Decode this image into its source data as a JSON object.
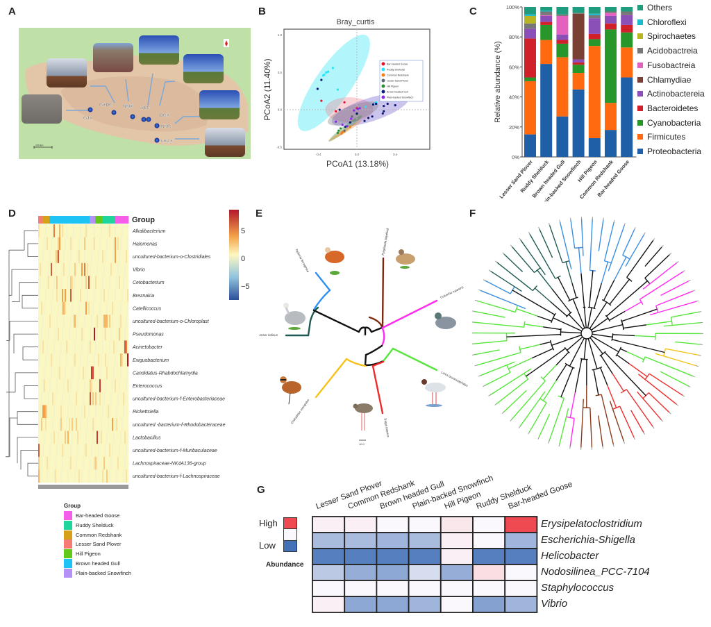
{
  "panels": {
    "a": "A",
    "b": "B",
    "c": "C",
    "d": "D",
    "e": "E",
    "f": "F",
    "g": "G"
  },
  "map": {
    "sites": [
      "GJX",
      "GXDC",
      "NMX",
      "SLC",
      "BGX",
      "NMC",
      "LKZX"
    ],
    "scale_label": "200 km",
    "marker_color": "#1f4fb0"
  },
  "chart_data": [
    {
      "id": "pcoa",
      "type": "scatter",
      "title": "Bray_curtis",
      "xlabel": "PCoA1 (13.18%)",
      "ylabel": "PCoA2 (11.40%)",
      "xlim": [
        -0.76,
        0.76
      ],
      "ylim": [
        -0.53,
        1.08
      ],
      "xticks": [
        "-0.4",
        "0.0",
        "0.4"
      ],
      "yticks": [
        "-0.5",
        "0.0",
        "0.5",
        "1.0"
      ],
      "legend": "top-right",
      "series": [
        {
          "name": "Bar-headed Goose",
          "color": "#e8132a",
          "points": [
            [
              -0.37,
              0.12
            ],
            [
              -0.13,
              0.1
            ],
            [
              -0.22,
              -0.02
            ],
            [
              0.0,
              0.02
            ]
          ]
        },
        {
          "name": "Ruddy Shelduck",
          "color": "#22e5f5",
          "points": [
            [
              -0.34,
              0.47
            ],
            [
              -0.32,
              0.5
            ],
            [
              -0.3,
              0.51
            ],
            [
              -0.25,
              0.56
            ],
            [
              -0.2,
              0.27
            ],
            [
              -0.35,
              0.46
            ],
            [
              0.2,
              0.1
            ],
            [
              0.09,
              0.04
            ]
          ]
        },
        {
          "name": "Common Redshank",
          "color": "#f57b12",
          "points": [
            [
              -0.07,
              -0.23
            ],
            [
              -0.15,
              -0.3
            ],
            [
              -0.13,
              -0.29
            ],
            [
              -0.16,
              -0.32
            ]
          ]
        },
        {
          "name": "Lesser Sand Plover",
          "color": "#5a6a78",
          "points": [
            [
              -0.05,
              -0.09
            ],
            [
              -0.13,
              -0.28
            ]
          ]
        },
        {
          "name": "Hill Pigeon",
          "color": "#2e8a2e",
          "points": [
            [
              -0.17,
              -0.25
            ],
            [
              -0.19,
              -0.28
            ],
            [
              0.0,
              -0.06
            ],
            [
              -0.2,
              -0.31
            ]
          ]
        },
        {
          "name": "Brown headed Gull",
          "color": "#0b1a78",
          "points": [
            [
              -0.41,
              0.28
            ],
            [
              -0.37,
              0.4
            ],
            [
              -0.18,
              0.0
            ],
            [
              0.17,
              0.07
            ],
            [
              0.2,
              0.08
            ],
            [
              0.28,
              0.05
            ],
            [
              0.32,
              0.08
            ],
            [
              0.35,
              0.13
            ],
            [
              0.36,
              0.17
            ],
            [
              0.45,
              0.18
            ],
            [
              0.47,
              0.19
            ],
            [
              0.45,
              0.15
            ],
            [
              0.4,
              0.06
            ],
            [
              0.27,
              -0.05
            ],
            [
              0.12,
              -0.11
            ],
            [
              0.16,
              -0.09
            ],
            [
              0.08,
              -0.15
            ],
            [
              -0.07,
              -0.17
            ],
            [
              -0.12,
              -0.23
            ],
            [
              0.0,
              -0.05
            ],
            [
              0.28,
              -0.02
            ]
          ]
        },
        {
          "name": "Plain-backed Snowfinch",
          "color": "#8a2be2",
          "points": [
            [
              -0.22,
              -0.16
            ],
            [
              -0.06,
              -0.12
            ],
            [
              -0.03,
              -0.01
            ],
            [
              0.01,
              0.01
            ],
            [
              0.03,
              0.02
            ],
            [
              -0.15,
              -0.2
            ],
            [
              -0.1,
              -0.22
            ]
          ]
        }
      ]
    },
    {
      "id": "abundance",
      "type": "bar",
      "stacked": true,
      "ylabel": "Relative abundance (%)",
      "ylim": [
        0,
        100
      ],
      "yticks": [
        "0%",
        "20%",
        "40%",
        "60%",
        "80%",
        "100%"
      ],
      "legend": "right",
      "categories": [
        "Lesser Sand Plover",
        "Ruddy Shelduck",
        "Brown headed Gull",
        "Plain-backed Snowfinch",
        "Hill Pigeon",
        "Common Redshank",
        "Bar-headed Goose"
      ],
      "series": [
        {
          "name": "Proteobacteria",
          "color": "#1f5fa8",
          "values": [
            15,
            62,
            27,
            45,
            12.5,
            18,
            53
          ]
        },
        {
          "name": "Firmicutes",
          "color": "#ff6a10",
          "values": [
            35.5,
            16,
            39.5,
            11,
            61.5,
            18,
            20
          ]
        },
        {
          "name": "Cyanobacteria",
          "color": "#27962b",
          "values": [
            2.5,
            10,
            9,
            5.5,
            4.5,
            49,
            10
          ]
        },
        {
          "name": "Bacteroidetes",
          "color": "#d0202a",
          "values": [
            26,
            2,
            2.5,
            1.5,
            3.5,
            4,
            5
          ]
        },
        {
          "name": "Actinobactereia",
          "color": "#8b4fb8",
          "values": [
            6.5,
            4,
            3.5,
            2,
            10.5,
            5,
            6.5
          ]
        },
        {
          "name": "Chlamydiae",
          "color": "#7b4034",
          "values": [
            0,
            0,
            0,
            30.5,
            0,
            0,
            0
          ]
        },
        {
          "name": "Fusobactreia",
          "color": "#e461c0",
          "values": [
            0,
            0.5,
            12.5,
            0,
            0,
            2,
            0
          ]
        },
        {
          "name": "Acidobactreia",
          "color": "#777777",
          "values": [
            3.5,
            2.5,
            1,
            0.5,
            2,
            1,
            2.5
          ]
        },
        {
          "name": "Spirochaetes",
          "color": "#b8b522",
          "values": [
            5,
            0,
            0,
            0,
            0,
            0,
            0
          ]
        },
        {
          "name": "Chloroflexi",
          "color": "#1cbad0",
          "values": [
            1,
            0.5,
            0,
            0,
            1,
            0,
            0
          ]
        },
        {
          "name": "Others",
          "color": "#1f9c7e",
          "values": [
            5,
            2.5,
            5,
            4,
            4.5,
            3,
            3
          ]
        }
      ]
    },
    {
      "id": "genus-heatmap",
      "type": "heatmap",
      "legend_title": "Group",
      "scale_ticks": [
        "5",
        "0",
        "−5"
      ],
      "rows": [
        "Alkalibacterium",
        "Halomonas",
        "uncultured-bacterium-o-Clostridiales",
        "Vibrio",
        "Cetobacterium",
        "Breznakia",
        "Catellicoccus",
        "uncultured-bacterium-o-Chloroplast",
        "Pseudomonas",
        "Acinetobacter",
        "Exiguobacterium",
        "Candidatus-Rhabdochlamydia",
        "Enterococcus",
        "uncultured-bacterium-f-Enterobacteriaceae",
        "Rickettsiella",
        "uncultured -bacterium-f-Rhodobacteraceae",
        "Lactobacillus",
        "uncultured-bacterium-f-Muribaculaceae",
        "Lachnospiraceae-NK4A136-group",
        "uncultured-bacterium-f-Lachnospiraceae"
      ],
      "groups": [
        {
          "name": "Bar-headed Goose",
          "color": "#f55ee8"
        },
        {
          "name": "Ruddy Shelduck",
          "color": "#1ed69c"
        },
        {
          "name": "Common Redshank",
          "color": "#d7a019"
        },
        {
          "name": "Lesser Sand Plover",
          "color": "#f57b74"
        },
        {
          "name": "Hill Pigeon",
          "color": "#62c81c"
        },
        {
          "name": "Brown headed Gull",
          "color": "#1ec3f5"
        },
        {
          "name": "Plain-backed Snowfinch",
          "color": "#b491f5"
        }
      ],
      "column_groups": [
        {
          "group": "Lesser Sand Plover",
          "n": 3
        },
        {
          "group": "Common Redshank",
          "n": 5
        },
        {
          "group": "Brown headed Gull",
          "n": 29
        },
        {
          "group": "Plain-backed Snowfinch",
          "n": 4
        },
        {
          "group": "Hill Pigeon",
          "n": 5
        },
        {
          "group": "Ruddy Shelduck",
          "n": 9
        },
        {
          "group": "Bar-headed Goose",
          "n": 10
        }
      ],
      "hotspots": [
        [
          0,
          11,
          5
        ],
        [
          0,
          15,
          3
        ],
        [
          1,
          15,
          4
        ],
        [
          1,
          55,
          4
        ],
        [
          1,
          14,
          2
        ],
        [
          1,
          33,
          2
        ],
        [
          2,
          14,
          6
        ],
        [
          2,
          55,
          4
        ],
        [
          2,
          13,
          2
        ],
        [
          3,
          9,
          6
        ],
        [
          3,
          31,
          4
        ],
        [
          3,
          33,
          5
        ],
        [
          3,
          26,
          2
        ],
        [
          4,
          36,
          6
        ],
        [
          4,
          13,
          2
        ],
        [
          4,
          23,
          2
        ],
        [
          4,
          34,
          2
        ],
        [
          5,
          17,
          4
        ],
        [
          5,
          19,
          4
        ],
        [
          5,
          23,
          6
        ],
        [
          6,
          34,
          4
        ],
        [
          6,
          18,
          3
        ],
        [
          6,
          17,
          2
        ],
        [
          7,
          26,
          3
        ],
        [
          7,
          47,
          3
        ],
        [
          7,
          48,
          3
        ],
        [
          7,
          49,
          3
        ],
        [
          7,
          51,
          2
        ],
        [
          8,
          40,
          8
        ],
        [
          8,
          58,
          2
        ],
        [
          9,
          62,
          6
        ],
        [
          9,
          63,
          5
        ],
        [
          10,
          64,
          8
        ],
        [
          10,
          59,
          3
        ],
        [
          10,
          48,
          1
        ],
        [
          11,
          38,
          7
        ],
        [
          11,
          39,
          6
        ],
        [
          12,
          44,
          7
        ],
        [
          12,
          37,
          2
        ],
        [
          13,
          37,
          6
        ],
        [
          13,
          39,
          2
        ],
        [
          13,
          41,
          2
        ],
        [
          14,
          3,
          4
        ],
        [
          14,
          4,
          4
        ],
        [
          14,
          5,
          3
        ],
        [
          15,
          53,
          4
        ],
        [
          15,
          24,
          2
        ],
        [
          15,
          27,
          2
        ],
        [
          15,
          2,
          2
        ],
        [
          15,
          16,
          2
        ],
        [
          16,
          42,
          7
        ],
        [
          16,
          19,
          2
        ],
        [
          16,
          21,
          3
        ],
        [
          17,
          0,
          6
        ],
        [
          18,
          0,
          2
        ],
        [
          18,
          47,
          2
        ],
        [
          18,
          41,
          2
        ],
        [
          19,
          0,
          3
        ],
        [
          19,
          49,
          2
        ]
      ]
    },
    {
      "id": "key-genera",
      "type": "heatmap",
      "legend_title": "Abundance",
      "legend_high": "High",
      "legend_low": "Low",
      "columns": [
        "Lesser Sand Plover",
        "Common Redshank",
        "Brown headed Gull",
        "Plain-backed Snowfinch",
        "Hill Pigeon",
        "Ruddy Shelduck",
        "Bar-headed Goose"
      ],
      "rows": [
        "Erysipelatoclostridium",
        "Escherichia-Shigella",
        "Helicobacter",
        "Nodosilinea_PCC-7104",
        "Staphylococcus",
        "Vibrio"
      ],
      "values": [
        [
          0.05,
          0.05,
          0.0,
          0.0,
          0.1,
          0.0,
          1.0
        ],
        [
          -0.45,
          -0.45,
          -0.5,
          -0.45,
          0.05,
          0.0,
          -0.5
        ],
        [
          -0.9,
          -0.9,
          -0.9,
          -0.9,
          0.05,
          -0.9,
          -0.9
        ],
        [
          -0.35,
          -0.55,
          -0.6,
          -0.2,
          -0.55,
          0.15,
          0.0
        ],
        [
          0.0,
          0.0,
          0.0,
          0.0,
          0.0,
          0.0,
          0.0
        ],
        [
          0.05,
          -0.6,
          -0.6,
          -0.5,
          0.0,
          -0.65,
          -0.5
        ]
      ],
      "colors": {
        "high": "#ef4a52",
        "mid": "#fbf8fd",
        "low": "#4472b8"
      }
    }
  ],
  "host_tree": {
    "species": [
      "Anser indicus",
      "Tadorna ferruginea",
      "Pyrgilauda blanfordi",
      "Columba rupestris",
      "Larus brunnicephalus",
      "Tringa totanus",
      "Charadrius mongolus"
    ],
    "scale_label": "10.0"
  },
  "bacterial_tree": {
    "leaf_groups": [
      {
        "color": "#3b8fe0",
        "n": 6
      },
      {
        "color": "#111111",
        "n": 3
      },
      {
        "color": "#ff2bf0",
        "n": 5
      },
      {
        "color": "#55e63a",
        "n": 4
      },
      {
        "color": "#f5c21b",
        "n": 2
      },
      {
        "color": "#55e63a",
        "n": 2
      },
      {
        "color": "#ee2a2a",
        "n": 7
      },
      {
        "color": "#8a3a1a",
        "n": 5
      },
      {
        "color": "#ff2bf0",
        "n": 1
      },
      {
        "color": "#55e63a",
        "n": 18
      },
      {
        "color": "#3b8fe0",
        "n": 2
      },
      {
        "color": "#1f5a52",
        "n": 8
      },
      {
        "color": "#3b8fe0",
        "n": 3
      }
    ]
  }
}
